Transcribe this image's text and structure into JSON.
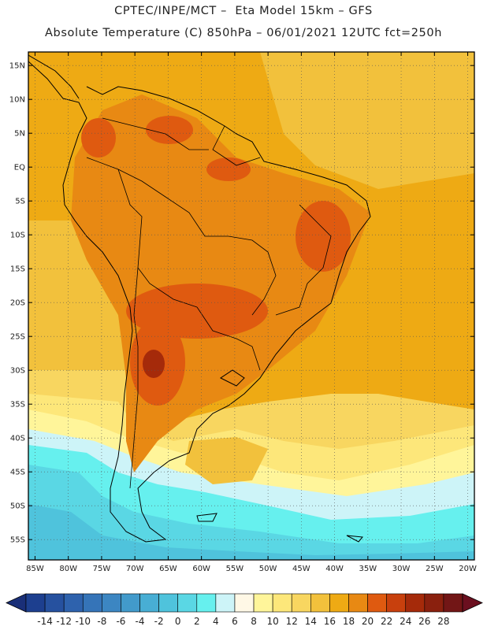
{
  "header": {
    "line1": "CPTEC/INPE/MCT –  Eta Model 15km – GFS",
    "line2": "Absolute Temperature (C) 850hPa – 06/01/2021 12UTC fct=250h"
  },
  "map": {
    "lon_range": [
      -86,
      -19
    ],
    "lat_range": [
      -58,
      17
    ],
    "lon_ticks": [
      {
        "value": -85,
        "label": "85W"
      },
      {
        "value": -80,
        "label": "80W"
      },
      {
        "value": -75,
        "label": "75W"
      },
      {
        "value": -70,
        "label": "70W"
      },
      {
        "value": -65,
        "label": "65W"
      },
      {
        "value": -60,
        "label": "60W"
      },
      {
        "value": -55,
        "label": "55W"
      },
      {
        "value": -50,
        "label": "50W"
      },
      {
        "value": -45,
        "label": "45W"
      },
      {
        "value": -40,
        "label": "40W"
      },
      {
        "value": -35,
        "label": "35W"
      },
      {
        "value": -30,
        "label": "30W"
      },
      {
        "value": -25,
        "label": "25W"
      },
      {
        "value": -20,
        "label": "20W"
      }
    ],
    "lat_ticks": [
      {
        "value": 15,
        "label": "15N"
      },
      {
        "value": 10,
        "label": "10N"
      },
      {
        "value": 5,
        "label": "5N"
      },
      {
        "value": 0,
        "label": "EQ"
      },
      {
        "value": -5,
        "label": "5S"
      },
      {
        "value": -10,
        "label": "10S"
      },
      {
        "value": -15,
        "label": "15S"
      },
      {
        "value": -20,
        "label": "20S"
      },
      {
        "value": -25,
        "label": "25S"
      },
      {
        "value": -30,
        "label": "30S"
      },
      {
        "value": -35,
        "label": "35S"
      },
      {
        "value": -40,
        "label": "40S"
      },
      {
        "value": -45,
        "label": "45S"
      },
      {
        "value": -50,
        "label": "50S"
      },
      {
        "value": -55,
        "label": "55S"
      }
    ]
  },
  "colorbar": {
    "labels": [
      "-14",
      "-12",
      "-10",
      "-8",
      "-6",
      "-4",
      "-2",
      "0",
      "2",
      "4",
      "6",
      "8",
      "10",
      "12",
      "14",
      "16",
      "18",
      "20",
      "22",
      "24",
      "26",
      "28"
    ],
    "colors": [
      "#1d3f8f",
      "#26519f",
      "#2e62ad",
      "#3574b8",
      "#3c86c2",
      "#429acb",
      "#48aed4",
      "#4fc3dc",
      "#5ad7e4",
      "#66f0ee",
      "#cdf4f8",
      "#fff8e6",
      "#fff59a",
      "#fde77a",
      "#f8d660",
      "#f2c13c",
      "#eeaa14",
      "#e88913",
      "#df5a10",
      "#c8400d",
      "#a52a0a",
      "#8a200e",
      "#721616"
    ],
    "under_color": "#1a2f78",
    "over_color": "#6b0f1f"
  }
}
